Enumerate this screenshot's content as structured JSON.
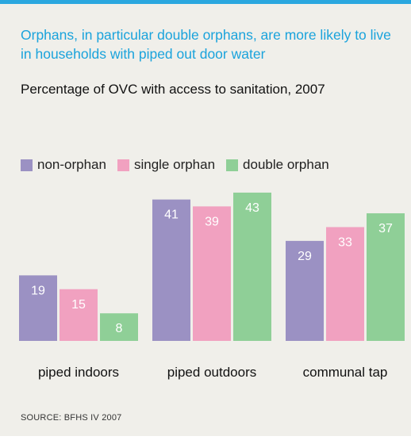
{
  "headline": "Orphans, in particular double orphans, are more likely to live in households with piped out door water",
  "colors": {
    "accent": "#2aa7df",
    "headline": "#1aa3dc",
    "background": "#f0efea",
    "value_label": "#ffffff"
  },
  "chart_data": {
    "type": "bar",
    "title": "Percentage of OVC with access to sanitation, 2007",
    "categories": [
      "piped indoors",
      "piped outdoors",
      "communal tap"
    ],
    "series": [
      {
        "name": "non-orphan",
        "color": "#9b91c3",
        "values": [
          19,
          41,
          29
        ]
      },
      {
        "name": "single orphan",
        "color": "#f1a1c0",
        "values": [
          15,
          39,
          33
        ]
      },
      {
        "name": "double orphan",
        "color": "#8fcf97",
        "values": [
          8,
          43,
          37
        ]
      }
    ],
    "xlabel": "",
    "ylabel": "",
    "ylim": [
      0,
      43
    ],
    "grid": false,
    "legend_position": "top-left",
    "data_labels": true
  },
  "source": "SOURCE: BFHS IV 2007"
}
